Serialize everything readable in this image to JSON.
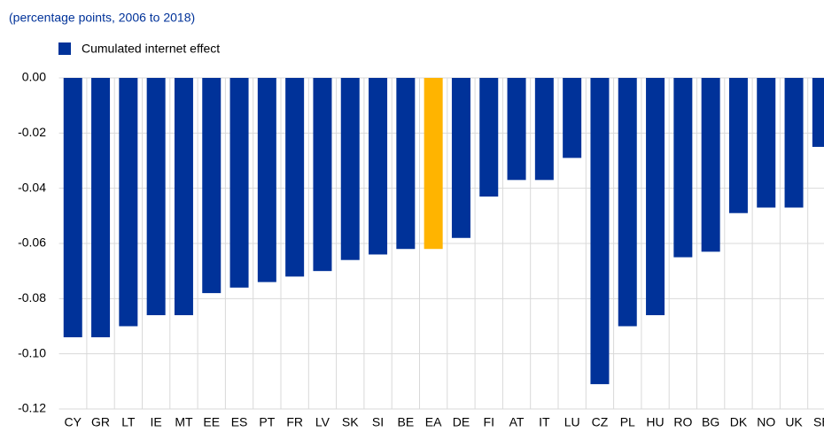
{
  "chart_data": {
    "type": "bar",
    "subtitle": "(percentage points, 2006 to 2018)",
    "series": [
      {
        "name": "Cumulated internet effect",
        "color": "#003299"
      }
    ],
    "categories": [
      "CY",
      "GR",
      "LT",
      "IE",
      "MT",
      "EE",
      "ES",
      "PT",
      "FR",
      "LV",
      "SK",
      "SI",
      "BE",
      "EA",
      "DE",
      "FI",
      "AT",
      "IT",
      "LU",
      "CZ",
      "PL",
      "HU",
      "RO",
      "BG",
      "DK",
      "NO",
      "UK",
      "SE"
    ],
    "values": [
      -0.094,
      -0.094,
      -0.09,
      -0.086,
      -0.086,
      -0.078,
      -0.076,
      -0.074,
      -0.072,
      -0.07,
      -0.066,
      -0.064,
      -0.062,
      -0.062,
      -0.058,
      -0.043,
      -0.037,
      -0.037,
      -0.029,
      -0.111,
      -0.09,
      -0.086,
      -0.065,
      -0.063,
      -0.049,
      -0.047,
      -0.047,
      -0.025
    ],
    "colors": [
      "#003299",
      "#003299",
      "#003299",
      "#003299",
      "#003299",
      "#003299",
      "#003299",
      "#003299",
      "#003299",
      "#003299",
      "#003299",
      "#003299",
      "#003299",
      "#ffb400",
      "#003299",
      "#003299",
      "#003299",
      "#003299",
      "#003299",
      "#003299",
      "#003299",
      "#003299",
      "#003299",
      "#003299",
      "#003299",
      "#003299",
      "#003299",
      "#003299"
    ],
    "ylim": [
      -0.12,
      0
    ],
    "yticks": [
      {
        "value": 0,
        "label": "0.00"
      },
      -0.02,
      -0.04,
      -0.06,
      -0.08,
      {
        "value": -0.1,
        "label": "-0.10"
      },
      -0.12
    ],
    "grid": true
  }
}
